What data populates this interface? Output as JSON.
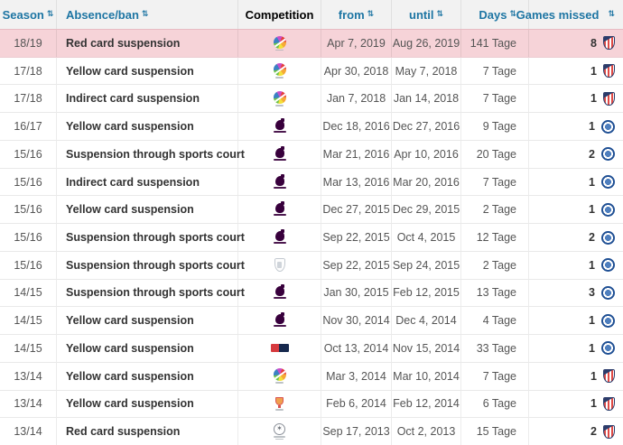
{
  "colors": {
    "header_link": "#1d75a3",
    "highlight_row_bg": "#f6d3d8",
    "header_bg": "#f2f2f2",
    "premier_league_purple": "#38003c",
    "chelsea_blue": "#1d4e93",
    "atletico_red": "#e04a45"
  },
  "table": {
    "sort_icon": "⇅",
    "cl_star_icon": "✶",
    "columns": [
      {
        "key": "season",
        "label": "Season",
        "sortable": true
      },
      {
        "key": "absence",
        "label": "Absence/ban",
        "sortable": true
      },
      {
        "key": "competition",
        "label": "Competition",
        "sortable": false
      },
      {
        "key": "from",
        "label": "from",
        "sortable": true
      },
      {
        "key": "until",
        "label": "until",
        "sortable": true
      },
      {
        "key": "days",
        "label": "Days",
        "sortable": true
      },
      {
        "key": "games_missed",
        "label": "Games missed",
        "sortable": true
      }
    ],
    "rows": [
      {
        "season": "18/19",
        "absence": "Red card suspension",
        "competition": "laliga",
        "competition_name": "LaLiga",
        "from": "Apr 7, 2019",
        "until": "Aug 26, 2019",
        "days": "141 Tage",
        "games_missed": "8",
        "club": "atletico-madrid",
        "highlighted": true
      },
      {
        "season": "17/18",
        "absence": "Yellow card suspension",
        "competition": "laliga",
        "competition_name": "LaLiga",
        "from": "Apr 30, 2018",
        "until": "May 7, 2018",
        "days": "7 Tage",
        "games_missed": "1",
        "club": "atletico-madrid",
        "highlighted": false
      },
      {
        "season": "17/18",
        "absence": "Indirect card suspension",
        "competition": "laliga",
        "competition_name": "LaLiga",
        "from": "Jan 7, 2018",
        "until": "Jan 14, 2018",
        "days": "7 Tage",
        "games_missed": "1",
        "club": "atletico-madrid",
        "highlighted": false
      },
      {
        "season": "16/17",
        "absence": "Yellow card suspension",
        "competition": "premier-league",
        "competition_name": "Premier League",
        "from": "Dec 18, 2016",
        "until": "Dec 27, 2016",
        "days": "9 Tage",
        "games_missed": "1",
        "club": "chelsea",
        "highlighted": false
      },
      {
        "season": "15/16",
        "absence": "Suspension through sports court",
        "competition": "premier-league",
        "competition_name": "Premier League",
        "from": "Mar 21, 2016",
        "until": "Apr 10, 2016",
        "days": "20 Tage",
        "games_missed": "2",
        "club": "chelsea",
        "highlighted": false
      },
      {
        "season": "15/16",
        "absence": "Indirect card suspension",
        "competition": "premier-league",
        "competition_name": "Premier League",
        "from": "Mar 13, 2016",
        "until": "Mar 20, 2016",
        "days": "7 Tage",
        "games_missed": "1",
        "club": "chelsea",
        "highlighted": false
      },
      {
        "season": "15/16",
        "absence": "Yellow card suspension",
        "competition": "premier-league",
        "competition_name": "Premier League",
        "from": "Dec 27, 2015",
        "until": "Dec 29, 2015",
        "days": "2 Tage",
        "games_missed": "1",
        "club": "chelsea",
        "highlighted": false
      },
      {
        "season": "15/16",
        "absence": "Suspension through sports court",
        "competition": "premier-league",
        "competition_name": "Premier League",
        "from": "Sep 22, 2015",
        "until": "Oct 4, 2015",
        "days": "12 Tage",
        "games_missed": "2",
        "club": "chelsea",
        "highlighted": false
      },
      {
        "season": "15/16",
        "absence": "Suspension through sports court",
        "competition": "fa-cup",
        "competition_name": "FA Cup",
        "from": "Sep 22, 2015",
        "until": "Sep 24, 2015",
        "days": "2 Tage",
        "games_missed": "1",
        "club": "chelsea",
        "highlighted": false
      },
      {
        "season": "14/15",
        "absence": "Suspension through sports court",
        "competition": "premier-league",
        "competition_name": "Premier League",
        "from": "Jan 30, 2015",
        "until": "Feb 12, 2015",
        "days": "13 Tage",
        "games_missed": "3",
        "club": "chelsea",
        "highlighted": false
      },
      {
        "season": "14/15",
        "absence": "Yellow card suspension",
        "competition": "premier-league",
        "competition_name": "Premier League",
        "from": "Nov 30, 2014",
        "until": "Dec 4, 2014",
        "days": "4 Tage",
        "games_missed": "1",
        "club": "chelsea",
        "highlighted": false
      },
      {
        "season": "14/15",
        "absence": "Yellow card suspension",
        "competition": "league-cup",
        "competition_name": "League Cup",
        "from": "Oct 13, 2014",
        "until": "Nov 15, 2014",
        "days": "33 Tage",
        "games_missed": "1",
        "club": "chelsea",
        "highlighted": false
      },
      {
        "season": "13/14",
        "absence": "Yellow card suspension",
        "competition": "laliga",
        "competition_name": "LaLiga",
        "from": "Mar 3, 2014",
        "until": "Mar 10, 2014",
        "days": "7 Tage",
        "games_missed": "1",
        "club": "atletico-madrid",
        "highlighted": false
      },
      {
        "season": "13/14",
        "absence": "Yellow card suspension",
        "competition": "copa-del-rey",
        "competition_name": "Copa del Rey",
        "from": "Feb 6, 2014",
        "until": "Feb 12, 2014",
        "days": "6 Tage",
        "games_missed": "1",
        "club": "atletico-madrid",
        "highlighted": false
      },
      {
        "season": "13/14",
        "absence": "Red card suspension",
        "competition": "champions-league",
        "competition_name": "UEFA Champions League",
        "from": "Sep 17, 2013",
        "until": "Oct 2, 2013",
        "days": "15 Tage",
        "games_missed": "2",
        "club": "atletico-madrid",
        "highlighted": false
      }
    ]
  }
}
